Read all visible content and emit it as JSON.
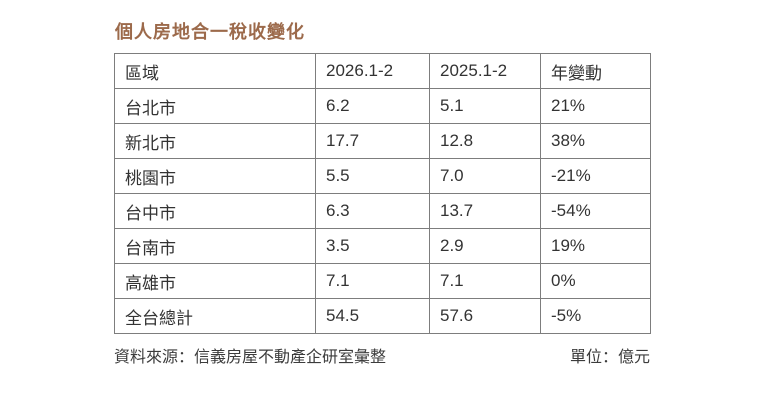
{
  "title": "個人房地合一稅收變化",
  "table": {
    "headers": [
      "區域",
      "2026.1-2",
      "2025.1-2",
      "年變動"
    ],
    "rows": [
      [
        "台北市",
        "6.2",
        "5.1",
        "21%"
      ],
      [
        "新北市",
        "17.7",
        "12.8",
        "38%"
      ],
      [
        "桃園市",
        "5.5",
        "7.0",
        "-21%"
      ],
      [
        "台中市",
        "6.3",
        "13.7",
        "-54%"
      ],
      [
        "台南市",
        "3.5",
        "2.9",
        "19%"
      ],
      [
        "高雄市",
        "7.1",
        "7.1",
        "0%"
      ],
      [
        "全台總計",
        "54.5",
        "57.6",
        "-5%"
      ]
    ]
  },
  "footer": {
    "source": "資料來源：信義房屋不動產企研室彙整",
    "unit": "單位：億元"
  },
  "colors": {
    "title": "#9c6a4b",
    "text": "#333333",
    "border": "#7d7d7d",
    "background": "#ffffff"
  },
  "chart_data": {
    "type": "table",
    "title": "個人房地合一稅收變化",
    "columns": [
      "區域",
      "2026.1-2",
      "2025.1-2",
      "年變動"
    ],
    "rows": [
      {
        "region": "台北市",
        "v2026": 6.2,
        "v2025": 5.1,
        "yoy_change_pct": 21
      },
      {
        "region": "新北市",
        "v2026": 17.7,
        "v2025": 12.8,
        "yoy_change_pct": 38
      },
      {
        "region": "桃園市",
        "v2026": 5.5,
        "v2025": 7.0,
        "yoy_change_pct": -21
      },
      {
        "region": "台中市",
        "v2026": 6.3,
        "v2025": 13.7,
        "yoy_change_pct": -54
      },
      {
        "region": "台南市",
        "v2026": 3.5,
        "v2025": 2.9,
        "yoy_change_pct": 19
      },
      {
        "region": "高雄市",
        "v2026": 7.1,
        "v2025": 7.1,
        "yoy_change_pct": 0
      },
      {
        "region": "全台總計",
        "v2026": 54.5,
        "v2025": 57.6,
        "yoy_change_pct": -5
      }
    ],
    "unit": "億元",
    "source": "信義房屋不動產企研室彙整"
  }
}
